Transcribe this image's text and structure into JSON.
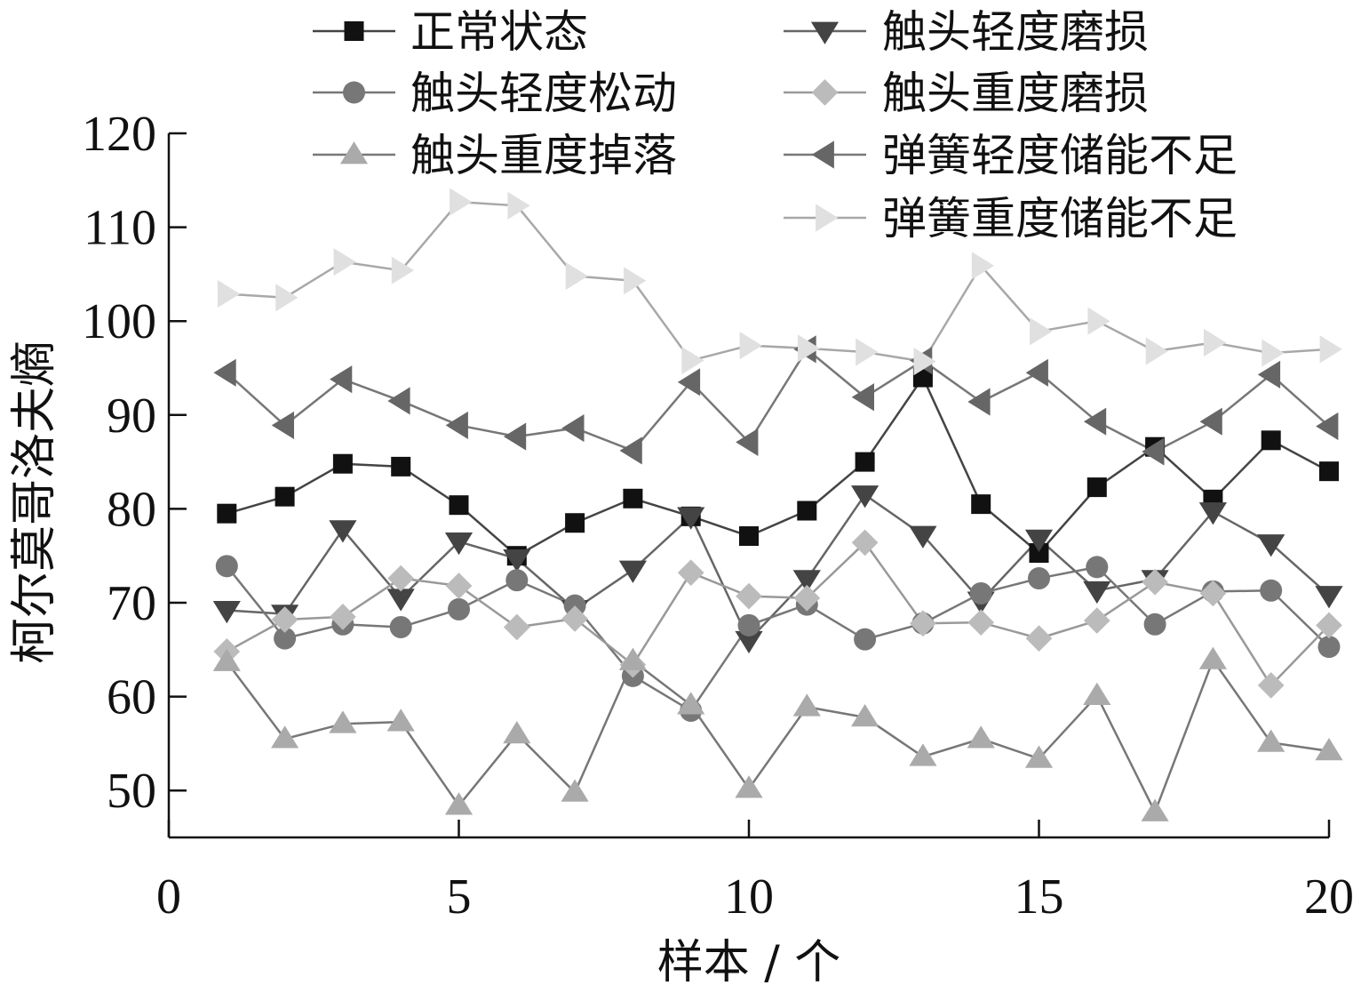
{
  "chart_data": {
    "type": "line",
    "title": "",
    "xlabel": "样本 / 个",
    "ylabel": "柯尔莫哥洛夫熵",
    "xlim": [
      0,
      20
    ],
    "ylim": [
      45,
      120
    ],
    "xticks": [
      0,
      5,
      10,
      15,
      20
    ],
    "yticks": [
      50,
      60,
      70,
      80,
      90,
      100,
      110,
      120
    ],
    "grid": false,
    "legend_position": "top",
    "x": [
      1,
      2,
      3,
      4,
      5,
      6,
      7,
      8,
      9,
      10,
      11,
      12,
      13,
      14,
      15,
      16,
      17,
      18,
      19,
      20
    ],
    "series": [
      {
        "name": "正常状态",
        "marker": "square",
        "color": "#111111",
        "line_color": "#444444",
        "values": [
          79.5,
          81.3,
          84.8,
          84.5,
          80.4,
          75.0,
          78.5,
          81.1,
          79.2,
          77.1,
          79.8,
          85.0,
          94.0,
          80.5,
          75.3,
          82.3,
          86.6,
          81.0,
          87.3,
          84.0
        ]
      },
      {
        "name": "触头轻度磨损",
        "marker": "triangle-down",
        "color": "#444444",
        "line_color": "#666666",
        "values": [
          69.2,
          68.8,
          77.8,
          70.5,
          76.5,
          74.7,
          69.3,
          73.5,
          79.2,
          66.0,
          72.5,
          81.5,
          77.2,
          70.2,
          76.8,
          71.3,
          72.5,
          79.7,
          76.3,
          70.8
        ]
      },
      {
        "name": "触头轻度松动",
        "marker": "circle",
        "color": "#777777",
        "line_color": "#777777",
        "values": [
          73.9,
          66.2,
          67.7,
          67.4,
          69.3,
          72.4,
          69.7,
          62.2,
          58.5,
          67.6,
          69.8,
          66.1,
          67.8,
          71.0,
          72.6,
          73.8,
          67.7,
          71.2,
          71.3,
          65.3
        ]
      },
      {
        "name": "触头重度磨损",
        "marker": "diamond",
        "color": "#bbbbbb",
        "line_color": "#999999",
        "values": [
          64.8,
          68.2,
          68.5,
          72.6,
          71.8,
          67.4,
          68.3,
          63.4,
          73.2,
          70.7,
          70.5,
          76.4,
          67.8,
          67.9,
          66.2,
          68.1,
          72.2,
          71.0,
          61.2,
          67.6
        ]
      },
      {
        "name": "触头重度掉落",
        "marker": "triangle-up",
        "color": "#aaaaaa",
        "line_color": "#777777",
        "values": [
          63.7,
          55.5,
          57.1,
          57.3,
          48.4,
          56.0,
          49.8,
          63.8,
          59.1,
          50.2,
          58.9,
          57.8,
          53.6,
          55.5,
          53.4,
          60.1,
          47.7,
          63.9,
          55.1,
          54.2
        ]
      },
      {
        "name": "弹簧轻度储能不足",
        "marker": "triangle-left",
        "color": "#666666",
        "line_color": "#777777",
        "values": [
          94.5,
          88.9,
          93.8,
          91.5,
          88.9,
          87.7,
          88.6,
          86.2,
          93.5,
          87.1,
          97.0,
          91.9,
          95.8,
          91.4,
          94.5,
          89.3,
          86.1,
          89.3,
          94.3,
          88.8
        ]
      },
      {
        "name": "弹簧重度储能不足",
        "marker": "triangle-right",
        "color": "#e0e0e0",
        "line_color": "#a8a8a8",
        "values": [
          102.9,
          102.5,
          106.3,
          105.4,
          112.7,
          112.3,
          104.8,
          104.3,
          95.8,
          97.4,
          97.1,
          96.7,
          95.7,
          105.9,
          98.9,
          100.0,
          96.8,
          97.7,
          96.6,
          97.0
        ]
      }
    ]
  }
}
